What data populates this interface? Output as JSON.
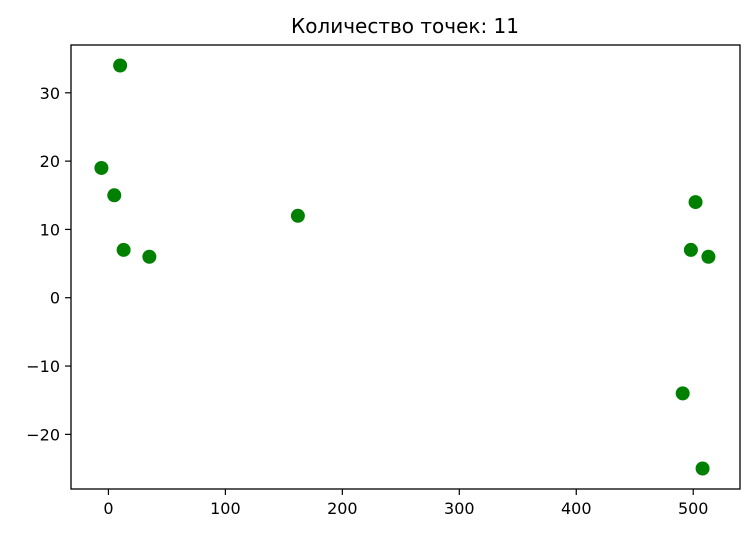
{
  "chart_data": {
    "type": "scatter",
    "title": "Количество точек: 11",
    "xlabel": "",
    "ylabel": "",
    "xlim": [
      -32,
      540
    ],
    "ylim": [
      -28,
      37
    ],
    "xticks": [
      0,
      100,
      200,
      300,
      400,
      500
    ],
    "yticks": [
      -20,
      -10,
      0,
      10,
      20,
      30
    ],
    "xtick_labels": [
      "0",
      "100",
      "200",
      "300",
      "400",
      "500"
    ],
    "ytick_labels": [
      "−20",
      "−10",
      "0",
      "10",
      "20",
      "30"
    ],
    "grid": false,
    "legend": "none",
    "marker_color": "#008000",
    "series": [
      {
        "points": [
          {
            "x": 10,
            "y": 34
          },
          {
            "x": -6,
            "y": 19
          },
          {
            "x": 5,
            "y": 15
          },
          {
            "x": 13,
            "y": 7
          },
          {
            "x": 35,
            "y": 6
          },
          {
            "x": 162,
            "y": 12
          },
          {
            "x": 502,
            "y": 14
          },
          {
            "x": 498,
            "y": 7
          },
          {
            "x": 513,
            "y": 6
          },
          {
            "x": 491,
            "y": -14
          },
          {
            "x": 508,
            "y": -25
          }
        ]
      }
    ]
  }
}
